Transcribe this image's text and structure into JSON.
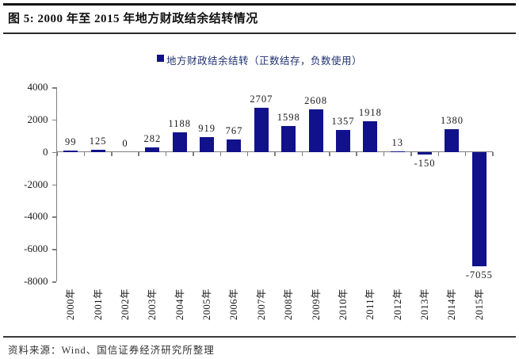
{
  "figure": {
    "title": "图 5: 2000 年至 2015 年地方财政结余结转情况",
    "source": "资料来源：Wind、国信证券经济研究所整理"
  },
  "chart_data": {
    "type": "bar",
    "title": "",
    "legend": "地方财政结余结转（正数结存，负数使用）",
    "categories": [
      "2000年",
      "2001年",
      "2002年",
      "2003年",
      "2004年",
      "2005年",
      "2006年",
      "2007年",
      "2008年",
      "2009年",
      "2010年",
      "2011年",
      "2012年",
      "2013年",
      "2014年",
      "2015年"
    ],
    "values": [
      99,
      125,
      0,
      282,
      1188,
      919,
      767,
      2707,
      1598,
      2608,
      1357,
      1918,
      13,
      -150,
      1380,
      -7055
    ],
    "xlabel": "",
    "ylabel": "",
    "ylim": [
      -8000,
      4000
    ],
    "yticks": [
      4000,
      2000,
      0,
      -2000,
      -4000,
      -6000,
      -8000
    ],
    "grid": false,
    "legend_position": "top-center",
    "bar_color": "#11118c",
    "legend_text_color": "#1f3070",
    "axis_color": "#7f7f7f",
    "label_color": "#1a1a1a"
  }
}
